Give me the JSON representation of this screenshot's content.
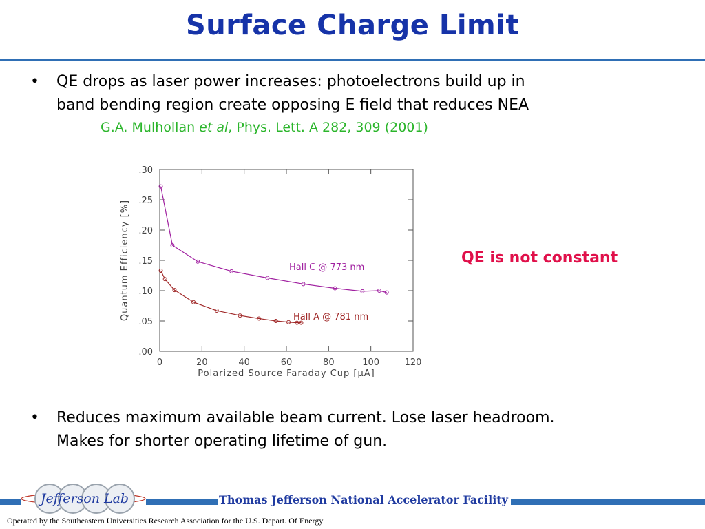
{
  "slide": {
    "title": "Surface Charge Limit",
    "bullet_char": "•",
    "bullets": [
      {
        "lines": [
          "QE drops as laser power increases: photoelectrons build up in",
          "band bending region create opposing E field that reduces NEA"
        ]
      },
      {
        "lines": [
          "Reduces maximum available beam current.  Lose laser headroom.",
          "Makes for shorter operating lifetime of gun."
        ]
      }
    ],
    "citation": {
      "author": "G.A. Mulhollan ",
      "etal": "et al",
      "rest": ", Phys. Lett. A 282, 309 (2001)"
    },
    "note": "QE is not constant",
    "footer": {
      "facility": "Thomas Jefferson National Accelerator Facility",
      "operated": "Operated by the Southeastern Universities Research Association for the U.S. Depart. Of Energy",
      "logo_text": "Jefferson Lab"
    }
  },
  "chart_data": {
    "type": "line",
    "xlabel": "Polarized Source Faraday Cup [μA]",
    "ylabel": "Quantum Efficiency [%]",
    "xlim": [
      0,
      120
    ],
    "ylim": [
      0,
      0.3
    ],
    "xticks": [
      "0",
      "20",
      "40",
      "60",
      "80",
      "100",
      "120"
    ],
    "yticks": [
      ".00",
      ".05",
      ".10",
      ".15",
      ".20",
      ".25",
      ".30"
    ],
    "colors": {
      "hall_c": "#a020a0",
      "hall_a": "#a02828"
    },
    "series": [
      {
        "name": "Hall C @ 773 nm",
        "x": [
          0.5,
          6,
          18,
          34,
          51,
          68,
          83,
          96,
          104,
          107.5
        ],
        "y": [
          0.272,
          0.175,
          0.148,
          0.132,
          0.121,
          0.111,
          0.104,
          0.099,
          0.1,
          0.097
        ]
      },
      {
        "name": "Hall A @ 781 nm",
        "x": [
          0.5,
          2.5,
          7,
          16,
          27,
          38,
          47,
          55,
          61,
          65,
          67
        ],
        "y": [
          0.133,
          0.119,
          0.101,
          0.081,
          0.067,
          0.059,
          0.054,
          0.05,
          0.048,
          0.047,
          0.047
        ]
      }
    ],
    "legend_text_pos": "inline"
  }
}
